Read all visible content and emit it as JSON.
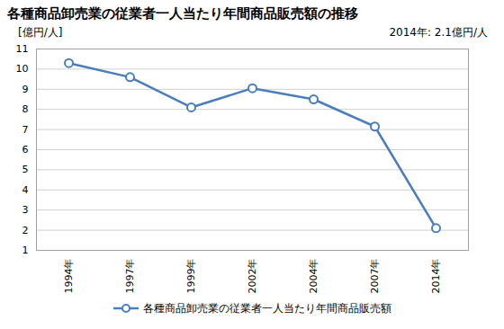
{
  "chart_data": {
    "type": "line",
    "title": "各種商品卸売業の従業者一人当たり年間商品販売額の推移",
    "y_label": "[億円/人]",
    "annotation": "2014年: 2.1億円/人",
    "categories": [
      "1994年",
      "1997年",
      "1999年",
      "2002年",
      "2004年",
      "2007年",
      "2014年"
    ],
    "series": [
      {
        "name": "各種商品卸売業の従業者一人当たり年間商品販売額",
        "color": "#4a7ebb",
        "values": [
          10.3,
          9.6,
          8.1,
          9.05,
          8.5,
          7.15,
          2.1
        ]
      }
    ],
    "ylim": [
      1,
      11
    ],
    "yticks": [
      1,
      2,
      3,
      4,
      5,
      6,
      7,
      8,
      9,
      10,
      11
    ],
    "grid": true,
    "legend": "bottom",
    "marker": "circle"
  }
}
